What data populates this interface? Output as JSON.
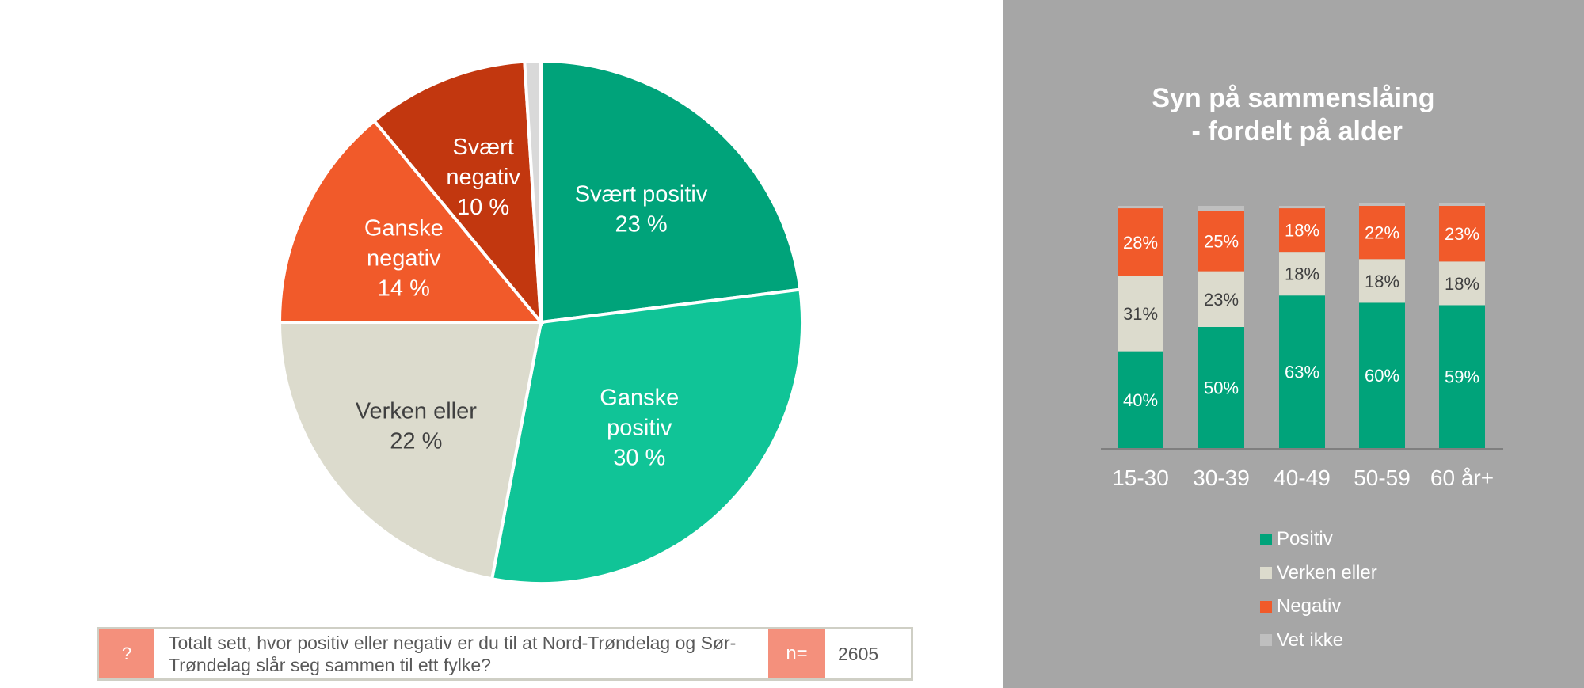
{
  "colors": {
    "svaert_positiv": "#00a37a",
    "ganske_positiv": "#10c497",
    "verken_eller": "#dcdbcd",
    "ganske_negativ": "#f15a2a",
    "svaert_negativ": "#c2370f",
    "vet_ikke": "#d9d9d9",
    "bar_positiv": "#00a37a",
    "bar_verken": "#dcdbcd",
    "bar_negativ": "#f15a2a",
    "bar_vet_ikke": "#bfbfbf",
    "right_background": "#a6a6a6",
    "accent_box": "#f4907c"
  },
  "chart_data": [
    {
      "type": "pie",
      "title": "",
      "slices": [
        {
          "label": "Svært positiv",
          "value": 23,
          "value_text": "23 %",
          "lines": [
            "Svært positiv"
          ],
          "color": "#00a37a",
          "text_color": "#ffffff"
        },
        {
          "label": "Ganske positiv",
          "value": 30,
          "value_text": "30 %",
          "lines": [
            "Ganske",
            "positiv"
          ],
          "color": "#10c497",
          "text_color": "#ffffff"
        },
        {
          "label": "Verken eller",
          "value": 22,
          "value_text": "22 %",
          "lines": [
            "Verken eller"
          ],
          "color": "#dcdbcd",
          "text_color": "#404040"
        },
        {
          "label": "Ganske negativ",
          "value": 14,
          "value_text": "14 %",
          "lines": [
            "Ganske",
            "negativ"
          ],
          "color": "#f15a2a",
          "text_color": "#ffffff"
        },
        {
          "label": "Svært negativ",
          "value": 10,
          "value_text": "10 %",
          "lines": [
            "Svært",
            "negativ"
          ],
          "color": "#c2370f",
          "text_color": "#ffffff"
        },
        {
          "label": "Vet ikke",
          "value": 1,
          "value_text": "",
          "lines": [],
          "color": "#d9d9d9",
          "text_color": "#ffffff"
        }
      ]
    },
    {
      "type": "bar",
      "stacked": true,
      "title_lines": [
        "Syn på sammenslåing",
        " - fordelt på alder"
      ],
      "categories": [
        "15-30",
        "30-39",
        "40-49",
        "50-59",
        "60 år+"
      ],
      "ylim": [
        0,
        100
      ],
      "series": [
        {
          "name": "Positiv",
          "values": [
            40,
            50,
            63,
            60,
            59
          ],
          "labels": [
            "40%",
            "50%",
            "63%",
            "60%",
            "59%"
          ],
          "color": "#00a37a",
          "text_color": "#ffffff"
        },
        {
          "name": "Verken eller",
          "values": [
            31,
            23,
            18,
            18,
            18
          ],
          "labels": [
            "31%",
            "23%",
            "18%",
            "18%",
            "18%"
          ],
          "color": "#dcdbcd",
          "text_color": "#404040"
        },
        {
          "name": "Negativ",
          "values": [
            28,
            25,
            18,
            22,
            23
          ],
          "labels": [
            "28%",
            "25%",
            "18%",
            "22%",
            "23%"
          ],
          "color": "#f15a2a",
          "text_color": "#ffffff"
        },
        {
          "name": "Vet ikke",
          "values": [
            1,
            2,
            1,
            1,
            1
          ],
          "labels": [
            "",
            "",
            "",
            "",
            ""
          ],
          "color": "#bfbfbf",
          "text_color": "#ffffff"
        }
      ],
      "legend_position": "bottom"
    }
  ],
  "question": {
    "mark": "?",
    "text": "Totalt sett, hvor positiv eller negativ er du til at Nord-Trøndelag og Sør-Trøndelag slår seg sammen til ett fylke?",
    "n_label": "n=",
    "n_value": "2605"
  }
}
